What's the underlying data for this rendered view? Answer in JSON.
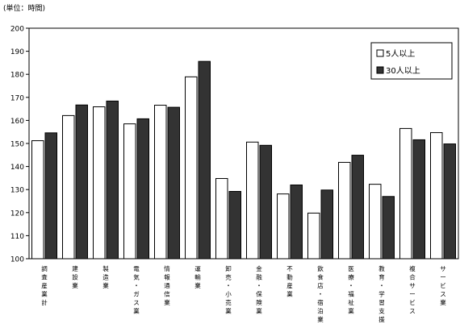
{
  "chart_data": {
    "type": "bar",
    "unit_label": "(単位：時間)",
    "title": "",
    "xlabel": "",
    "ylabel": "",
    "ylim": [
      100,
      200
    ],
    "yticks": [
      100,
      110,
      120,
      130,
      140,
      150,
      160,
      170,
      180,
      190,
      200
    ],
    "grid": false,
    "legend_position": "top-right",
    "categories": [
      "調査産業計",
      "建設業",
      "製造業",
      "電気・ガス業",
      "情報通信業",
      "運輸業",
      "卸売・小売業",
      "金融・保険業",
      "不動産業",
      "飲食店・宿泊業",
      "医療・福祉業",
      "教育・学習支援",
      "複合サービス",
      "サービス業"
    ],
    "series": [
      {
        "name": "5人以上",
        "color": "#ffffff",
        "values": [
          151.2,
          162.1,
          165.9,
          158.5,
          166.6,
          178.9,
          134.8,
          150.6,
          128.1,
          119.8,
          141.8,
          132.3,
          156.5,
          154.7
        ]
      },
      {
        "name": "30人以上",
        "color": "#333333",
        "values": [
          154.6,
          166.7,
          168.4,
          160.7,
          165.7,
          185.6,
          129.2,
          149.2,
          132.0,
          129.8,
          144.9,
          127.0,
          151.6,
          149.8
        ]
      }
    ]
  }
}
